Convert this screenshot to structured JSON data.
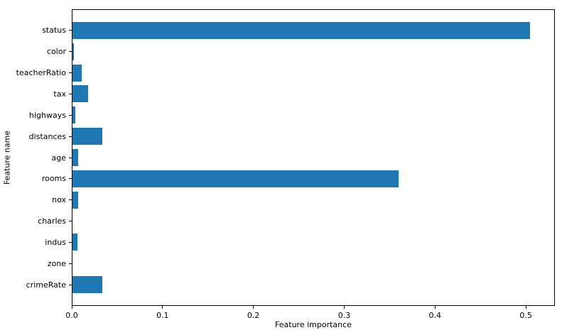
{
  "chart_data": {
    "type": "bar",
    "orientation": "horizontal",
    "title": "",
    "xlabel": "Feature importance",
    "ylabel": "Feature name",
    "categories": [
      "status",
      "color",
      "teacherRatio",
      "tax",
      "highways",
      "distances",
      "age",
      "rooms",
      "nox",
      "charles",
      "indus",
      "zone",
      "crimeRate"
    ],
    "values": [
      0.505,
      0.002,
      0.011,
      0.018,
      0.004,
      0.034,
      0.007,
      0.36,
      0.007,
      0,
      0.006,
      0,
      0.034
    ],
    "xlim": [
      0,
      0.532
    ],
    "xticks": [
      0.0,
      0.1,
      0.2,
      0.3,
      0.4,
      0.5
    ],
    "xtick_labels": [
      "0.0",
      "0.1",
      "0.2",
      "0.3",
      "0.4",
      "0.5"
    ],
    "bar_color": "#1f77b4",
    "bar_height_fraction": 0.8,
    "grid": false,
    "legend": null
  }
}
